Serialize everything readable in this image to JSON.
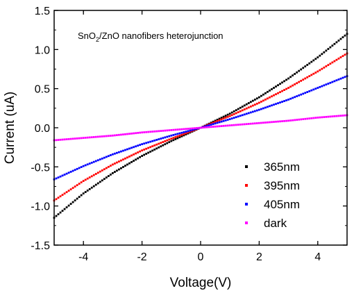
{
  "chart_data": {
    "type": "scatter",
    "annotation": {
      "prefix": "SnO",
      "sub": "2",
      "suffix": "/ZnO nanofibers heterojunction"
    },
    "xlabel": "Voltage(V)",
    "ylabel": "Current (uA)",
    "xlim": [
      -5,
      5
    ],
    "ylim": [
      -1.5,
      1.5
    ],
    "xticks": [
      -4,
      -2,
      0,
      2,
      4
    ],
    "xtick_labels": [
      "-4",
      "-2",
      "0",
      "2",
      "4"
    ],
    "yticks": [
      -1.5,
      -1.0,
      -0.5,
      0.0,
      0.5,
      1.0,
      1.5
    ],
    "ytick_labels": [
      "-1.5",
      "-1.0",
      "-0.5",
      "0.0",
      "0.5",
      "1.0",
      "1.5"
    ],
    "grid": false,
    "legend_position": "bottom-right",
    "series": [
      {
        "name": "365nm",
        "color": "#000000",
        "x": [
          -5,
          -4,
          -3,
          -2,
          -1,
          0,
          1,
          2,
          3,
          4,
          5
        ],
        "y": [
          -1.15,
          -0.84,
          -0.58,
          -0.36,
          -0.17,
          0.0,
          0.18,
          0.39,
          0.63,
          0.9,
          1.2
        ]
      },
      {
        "name": "395nm",
        "color": "#ff0000",
        "x": [
          -5,
          -4,
          -3,
          -2,
          -1,
          0,
          1,
          2,
          3,
          4,
          5
        ],
        "y": [
          -0.93,
          -0.68,
          -0.47,
          -0.29,
          -0.14,
          0.0,
          0.15,
          0.32,
          0.51,
          0.72,
          0.95
        ]
      },
      {
        "name": "405nm",
        "color": "#0000ff",
        "x": [
          -5,
          -4,
          -3,
          -2,
          -1,
          0,
          1,
          2,
          3,
          4,
          5
        ],
        "y": [
          -0.66,
          -0.49,
          -0.34,
          -0.21,
          -0.1,
          0.0,
          0.11,
          0.23,
          0.36,
          0.51,
          0.66
        ]
      },
      {
        "name": "dark",
        "color": "#ff00ff",
        "x": [
          -5,
          -4,
          -3,
          -2,
          -1,
          0,
          1,
          2,
          3,
          4,
          5
        ],
        "y": [
          -0.16,
          -0.13,
          -0.1,
          -0.06,
          -0.03,
          0.0,
          0.03,
          0.06,
          0.09,
          0.13,
          0.16
        ]
      }
    ]
  }
}
